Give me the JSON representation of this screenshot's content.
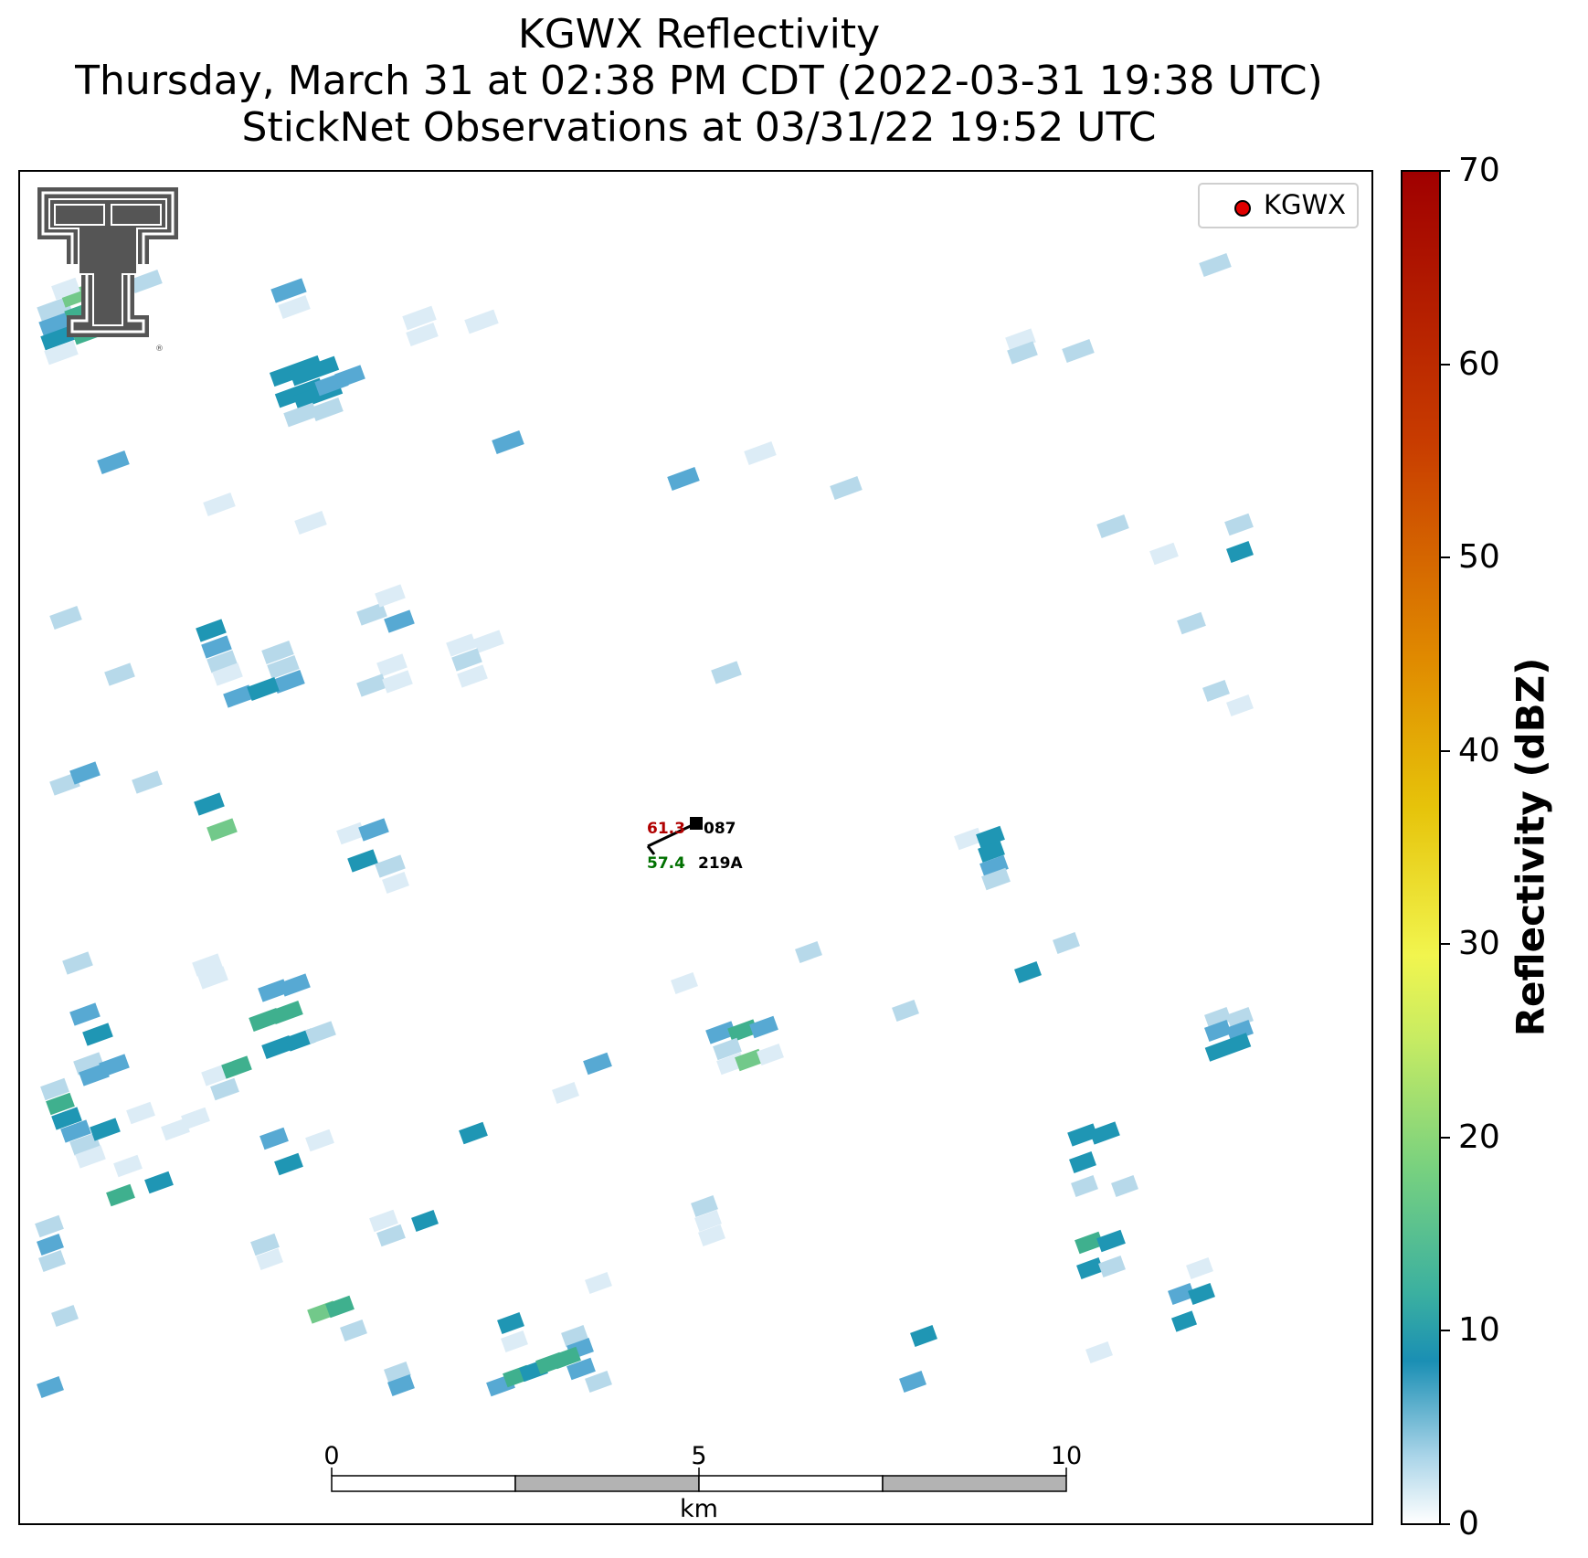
{
  "title": {
    "line1": "KGWX Reflectivity",
    "line2": "Thursday, March 31 at 02:38 PM CDT (2022-03-31 19:38 UTC)",
    "line3": "StickNet Observations at 03/31/22 19:52 UTC"
  },
  "legend": {
    "label": "KGWX",
    "marker_color": "#e00000"
  },
  "colorbar": {
    "title": "Reflectivity (dBZ)",
    "ticks": [
      "0",
      "10",
      "20",
      "30",
      "40",
      "50",
      "60",
      "70"
    ],
    "range": [
      0,
      70
    ]
  },
  "scale_bar": {
    "ticks": [
      "0",
      "5",
      "10"
    ],
    "unit": "km"
  },
  "station": {
    "temperature": "61.3",
    "direction": "087",
    "dewpoint": "57.4",
    "id": "219A",
    "temperature_color": "#b00000",
    "dewpoint_color": "#007000"
  },
  "logo": {
    "name": "texas-tech-double-t-logo"
  },
  "colors": {
    "light": "#b7d9ea",
    "pale": "#dcecf6",
    "mid": "#57a9d3",
    "teal": "#1f96b4",
    "green": "#3fb08e",
    "lightgreen": "#72c98a"
  }
}
